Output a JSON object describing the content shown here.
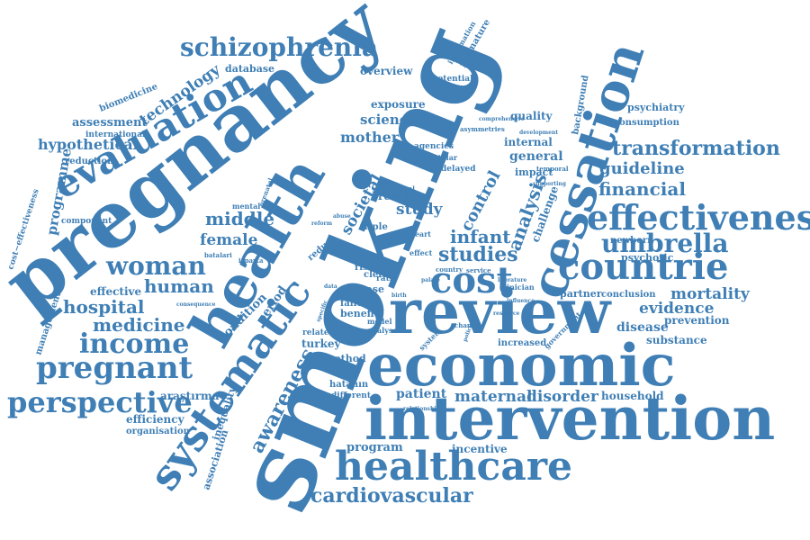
{
  "colors": {
    "word": "#3f7fb5",
    "background": "#ffffff"
  },
  "words": {
    "smoking": "smoking",
    "pregnancy": "pregnancy",
    "intervention": "intervention",
    "economic": "economic",
    "review": "review",
    "health": "health",
    "healthcare": "healthcare",
    "cessation": "cessation",
    "effectiveness": "effectiveness",
    "evaluation": "evaluation",
    "systematic": "systematic",
    "countrie": "countrie",
    "schizophrenia": "schizophrenia",
    "cost": "cost",
    "pregnant": "pregnant",
    "perspective": "perspective",
    "income": "income",
    "woman": "woman",
    "umbrella": "umbrella",
    "transformation": "transformation",
    "cardiovascular": "cardiovascular",
    "financial": "financial",
    "awareness": "awareness",
    "studies": "studies",
    "hospital": "hospital",
    "medicine": "medicine",
    "human": "human",
    "technology": "technology",
    "hypothetical": "hypothetical",
    "programme": "programme",
    "analysis": "analysis",
    "infant": "infant",
    "control": "control",
    "guideline": "guideline",
    "middle": "middle",
    "female": "female",
    "mother": "mother",
    "science": "science",
    "study": "study",
    "societal": "societal",
    "evidence": "evidence",
    "mortality": "mortality",
    "maternal": "maternal",
    "disorder": "disorder",
    "patient": "patient",
    "program": "program",
    "incentive": "incentive",
    "assessment": "assessment",
    "efficiency": "efficiency",
    "effective": "effective",
    "overview": "overview",
    "database": "database",
    "exposure": "exposure",
    "quality": "quality",
    "general": "general",
    "internal": "internal",
    "psychotic": "psychotic",
    "disease": "disease",
    "prevention": "prevention",
    "substance": "substance",
    "partner": "partner",
    "conclusion": "conclusion",
    "household": "household",
    "turkey": "turkey",
    "method": "method",
    "inequality": "inequality",
    "association": "association",
    "condition": "condition",
    "period": "period",
    "consumption": "consumption",
    "psychiatry": "psychiatry",
    "background": "background",
    "newborn": "newborn",
    "challenge": "challenge",
    "impact": "impact",
    "biomedicine": "biomedicine",
    "reduction": "reduction",
    "international": "international",
    "component": "component",
    "management": "management",
    "cost_effectiveness": "cost−effectiveness",
    "organisation": "organisation",
    "arastirma": "araştırma",
    "hatanin": "hatanın",
    "different": "different",
    "increased": "increased",
    "government": "government",
    "premature": "premature",
    "information": "information",
    "potential": "potential",
    "result": "result",
    "case": "case",
    "benefit": "benefit",
    "failure": "failure",
    "ratio": "ratio",
    "risk": "risk",
    "cleft": "cleft",
    "heart": "heart",
    "triple": "triple",
    "reduce": "reduce",
    "effect": "effect",
    "related": "related",
    "model": "model",
    "analyse": "analyse",
    "delayed": "delayed",
    "agencies": "agencies",
    "batalar": "batalar",
    "isparta": "isparta",
    "batalari": "batalari",
    "mental": "mental",
    "prenatal": "prenatal",
    "medical": "medical",
    "clinician": "clinician",
    "service": "service",
    "country": "country",
    "system": "system",
    "change": "change",
    "temporal": "temporal",
    "supporting": "supporting",
    "development": "development",
    "comprehensive": "comprehensive",
    "asymmetries": "asymmetries",
    "consequence": "consequence",
    "relationship": "relationship",
    "reform": "reform",
    "term": "term",
    "abuse": "abuse",
    "birth": "birth",
    "data": "data",
    "specific": "specific",
    "palate": "palate",
    "policies": "policies",
    "influence": "influence",
    "resource": "resource",
    "literature": "literature"
  }
}
